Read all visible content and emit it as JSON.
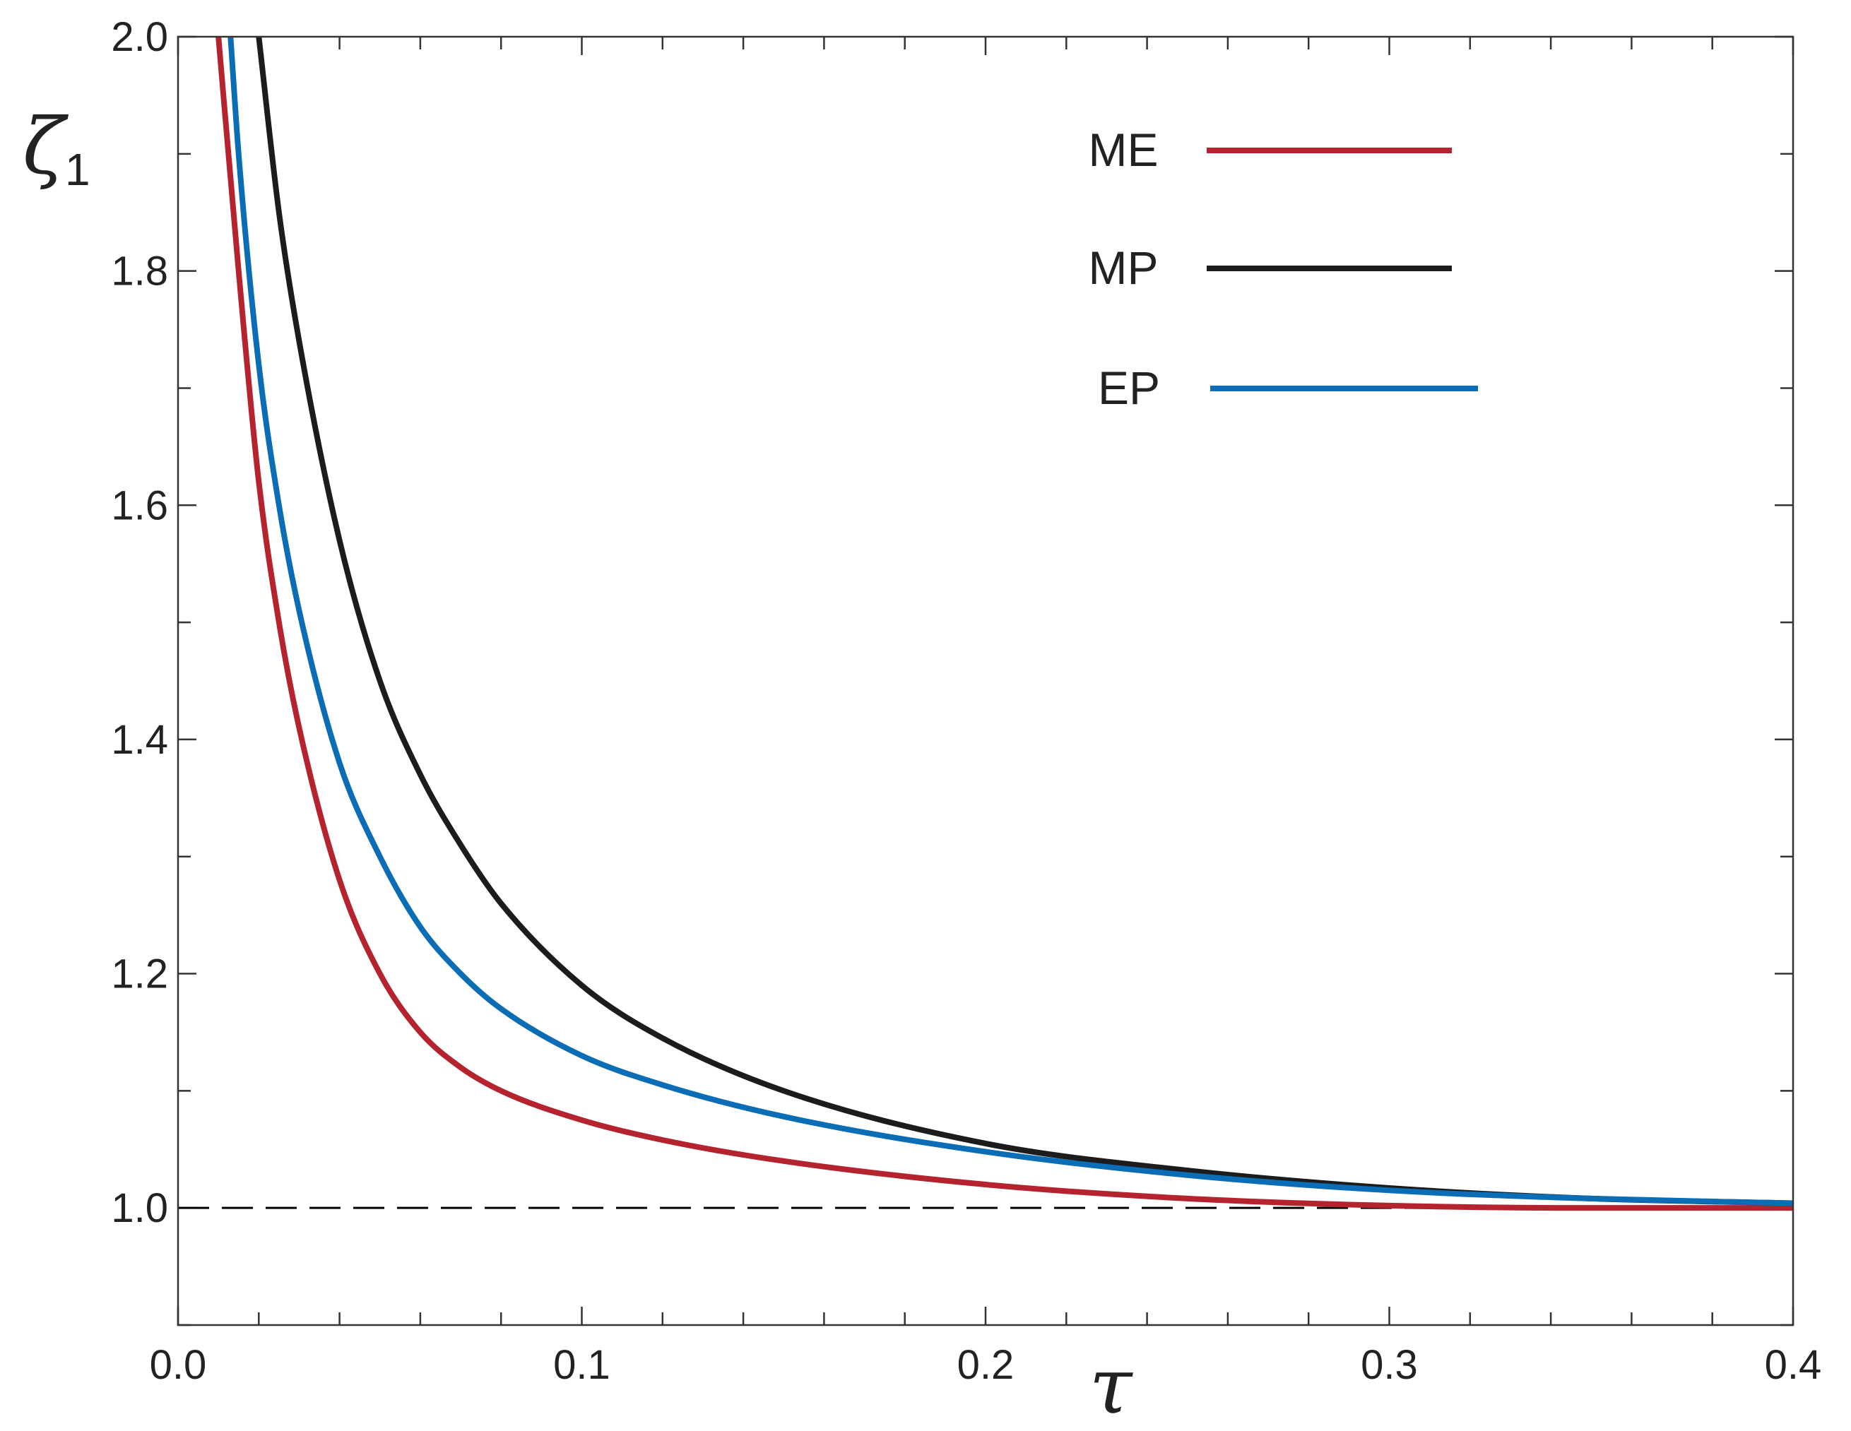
{
  "chart_data": {
    "type": "line",
    "title": "",
    "xlabel": "τ",
    "ylabel": {
      "symbol": "ζ",
      "subscript": "1"
    },
    "xlim": [
      0.0,
      0.4
    ],
    "ylim": [
      0.9,
      2.0
    ],
    "x_ticks": [
      0.0,
      0.1,
      0.2,
      0.3,
      0.4
    ],
    "x_tick_labels": [
      "0.0",
      "0.1",
      "0.2",
      "0.3",
      "0.4"
    ],
    "y_ticks": [
      1.0,
      1.2,
      1.4,
      1.6,
      1.8,
      2.0
    ],
    "y_tick_labels": [
      "1.0",
      "1.2",
      "1.4",
      "1.6",
      "1.8",
      "2.0"
    ],
    "grid": false,
    "legend_position": "top-right",
    "reference_line": {
      "y": 1.0,
      "style": "dashed",
      "color": "#000000"
    },
    "series": [
      {
        "name": "ME",
        "color": "#b5232e",
        "x": [
          0.01,
          0.015,
          0.02,
          0.025,
          0.03,
          0.04,
          0.05,
          0.06,
          0.07,
          0.08,
          0.1,
          0.12,
          0.15,
          0.2,
          0.25,
          0.3,
          0.35,
          0.4
        ],
        "y": [
          2.0,
          1.8,
          1.62,
          1.5,
          1.41,
          1.28,
          1.2,
          1.15,
          1.12,
          1.1,
          1.075,
          1.058,
          1.04,
          1.02,
          1.008,
          1.002,
          1.0,
          1.0
        ]
      },
      {
        "name": "MP",
        "color": "#1c1c1c",
        "x": [
          0.02,
          0.025,
          0.03,
          0.04,
          0.05,
          0.06,
          0.07,
          0.08,
          0.1,
          0.12,
          0.15,
          0.2,
          0.25,
          0.3,
          0.35,
          0.4
        ],
        "y": [
          2.0,
          1.85,
          1.74,
          1.57,
          1.45,
          1.37,
          1.31,
          1.26,
          1.19,
          1.145,
          1.1,
          1.055,
          1.032,
          1.017,
          1.008,
          1.004
        ]
      },
      {
        "name": "EP",
        "color": "#0a6db5",
        "x": [
          0.013,
          0.015,
          0.02,
          0.025,
          0.03,
          0.04,
          0.05,
          0.06,
          0.07,
          0.08,
          0.1,
          0.12,
          0.15,
          0.2,
          0.25,
          0.3,
          0.35,
          0.4
        ],
        "y": [
          2.0,
          1.9,
          1.72,
          1.6,
          1.51,
          1.38,
          1.3,
          1.24,
          1.2,
          1.17,
          1.13,
          1.105,
          1.078,
          1.048,
          1.028,
          1.015,
          1.008,
          1.004
        ]
      }
    ]
  }
}
